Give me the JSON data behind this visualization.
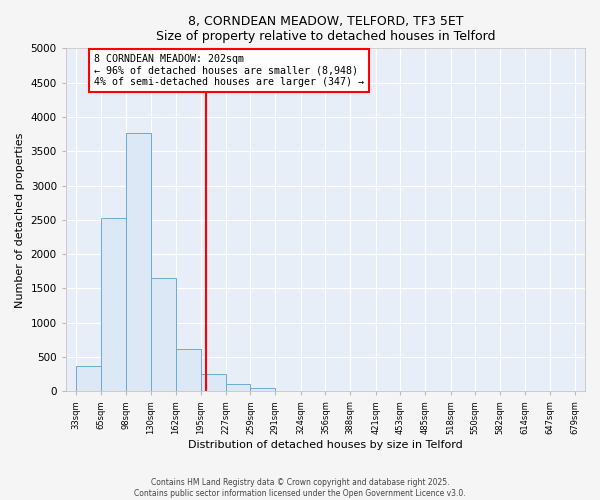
{
  "title_line1": "8, CORNDEAN MEADOW, TELFORD, TF3 5ET",
  "title_line2": "Size of property relative to detached houses in Telford",
  "xlabel": "Distribution of detached houses by size in Telford",
  "ylabel": "Number of detached properties",
  "bar_left_edges": [
    33,
    65,
    98,
    130,
    162,
    195,
    227,
    259,
    291,
    324,
    356,
    388,
    421,
    453,
    485,
    518,
    550,
    582,
    614,
    647
  ],
  "bar_widths": [
    32,
    33,
    32,
    32,
    33,
    32,
    32,
    32,
    33,
    32,
    32,
    33,
    32,
    32,
    33,
    32,
    32,
    32,
    33,
    32
  ],
  "bar_heights": [
    375,
    2530,
    3760,
    1650,
    625,
    250,
    110,
    50,
    0,
    0,
    0,
    0,
    0,
    0,
    0,
    0,
    0,
    0,
    0,
    0
  ],
  "bar_color": "#dce8f5",
  "bar_edgecolor": "#6aabd2",
  "tick_labels": [
    "33sqm",
    "65sqm",
    "98sqm",
    "130sqm",
    "162sqm",
    "195sqm",
    "227sqm",
    "259sqm",
    "291sqm",
    "324sqm",
    "356sqm",
    "388sqm",
    "421sqm",
    "453sqm",
    "485sqm",
    "518sqm",
    "550sqm",
    "582sqm",
    "614sqm",
    "647sqm",
    "679sqm"
  ],
  "tick_positions": [
    33,
    65,
    98,
    130,
    162,
    195,
    227,
    259,
    291,
    324,
    356,
    388,
    421,
    453,
    485,
    518,
    550,
    582,
    614,
    647,
    679
  ],
  "ylim": [
    0,
    5000
  ],
  "xlim": [
    20,
    692
  ],
  "vline_x": 202,
  "vline_color": "red",
  "annotation_line1": "8 CORNDEAN MEADOW: 202sqm",
  "annotation_line2": "← 96% of detached houses are smaller (8,948)",
  "annotation_line3": "4% of semi-detached houses are larger (347) →",
  "box_edgecolor": "red",
  "plot_bg_color": "#e8eef8",
  "fig_bg_color": "#f5f5f5",
  "grid_color": "white",
  "footer_line1": "Contains HM Land Registry data © Crown copyright and database right 2025.",
  "footer_line2": "Contains public sector information licensed under the Open Government Licence v3.0.",
  "yticks": [
    0,
    500,
    1000,
    1500,
    2000,
    2500,
    3000,
    3500,
    4000,
    4500,
    5000
  ]
}
